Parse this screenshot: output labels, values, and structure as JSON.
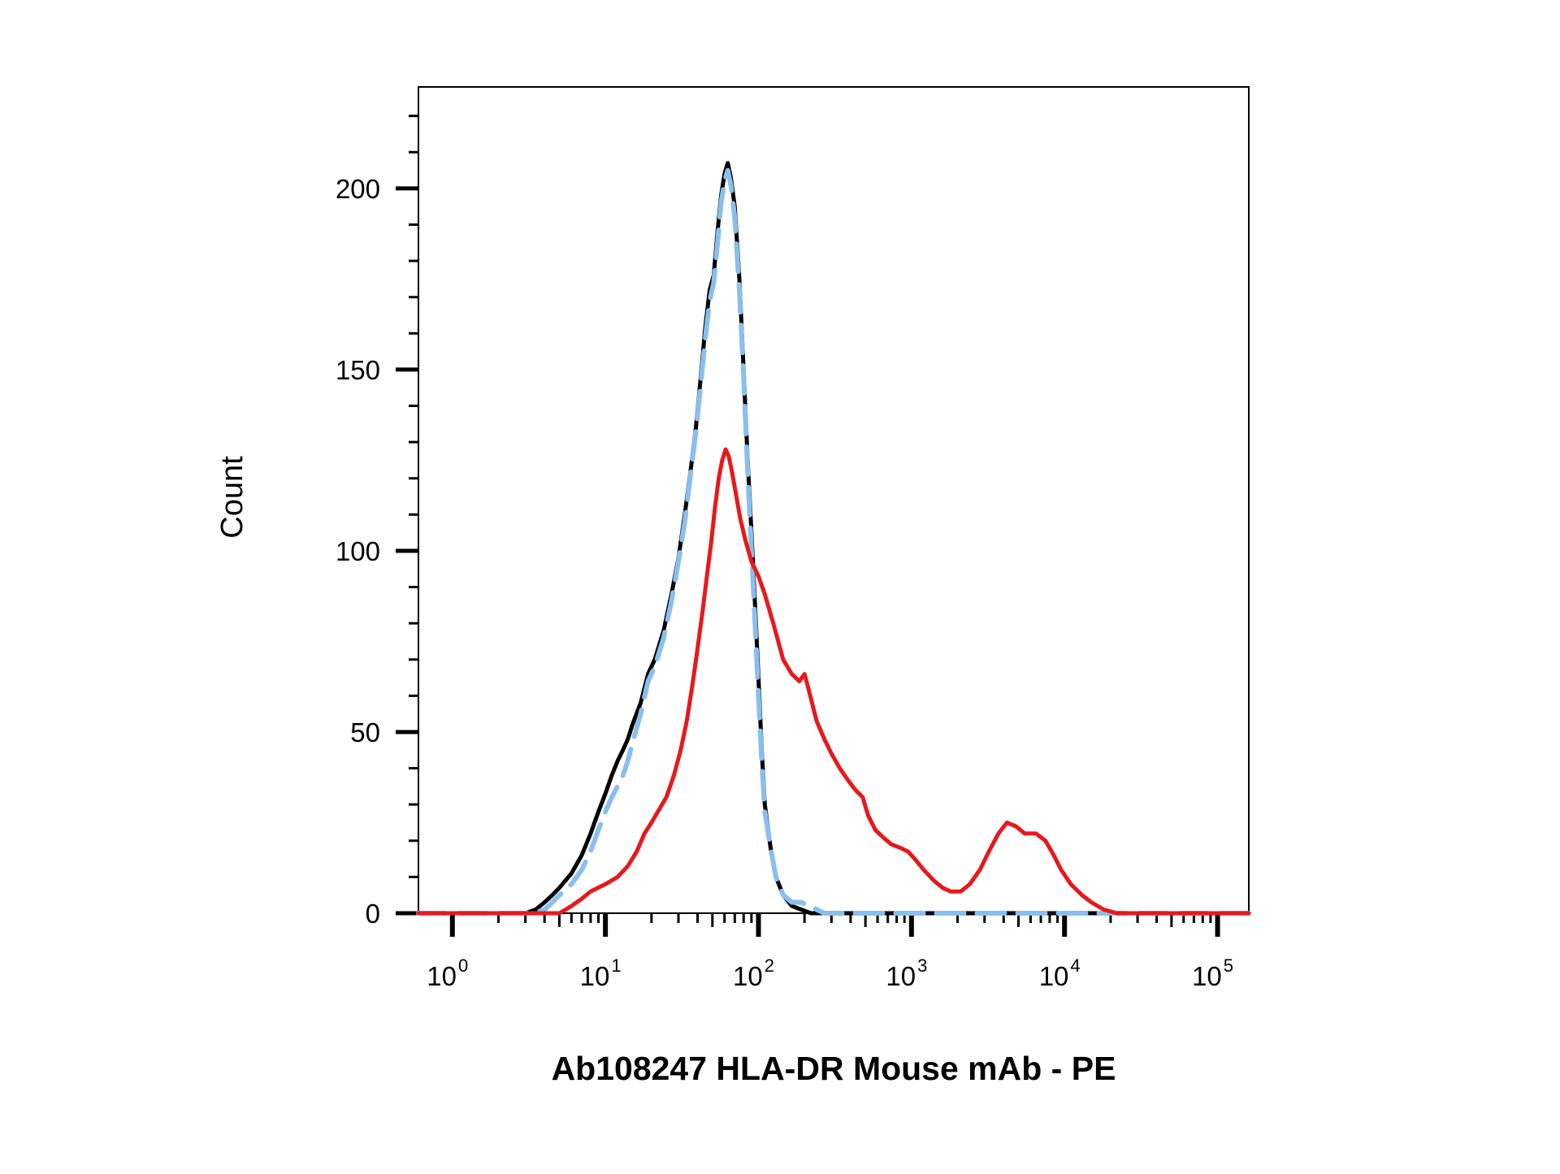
{
  "chart_data": {
    "type": "line",
    "title": "",
    "xlabel": "Ab108247 HLA-DR Mouse mAb - PE",
    "ylabel": "Count",
    "xscale": "log",
    "xlim": [
      0.6,
      160000
    ],
    "ylim": [
      0,
      228
    ],
    "xticks": [
      {
        "base": "10",
        "exp": "0",
        "value": 1
      },
      {
        "base": "10",
        "exp": "1",
        "value": 10
      },
      {
        "base": "10",
        "exp": "2",
        "value": 100
      },
      {
        "base": "10",
        "exp": "3",
        "value": 1000
      },
      {
        "base": "10",
        "exp": "4",
        "value": 10000
      },
      {
        "base": "10",
        "exp": "5",
        "value": 100000
      }
    ],
    "yticks": [
      0,
      50,
      100,
      150,
      200
    ],
    "grid": false,
    "legend": "none",
    "series": [
      {
        "color": "#000000",
        "style": "solid",
        "points": [
          [
            0.6,
            0
          ],
          [
            3,
            0
          ],
          [
            3.5,
            1
          ],
          [
            4,
            3
          ],
          [
            4.5,
            5
          ],
          [
            5,
            7
          ],
          [
            6,
            11
          ],
          [
            7,
            16
          ],
          [
            8,
            22
          ],
          [
            9,
            28
          ],
          [
            10,
            33
          ],
          [
            11,
            38
          ],
          [
            12,
            42
          ],
          [
            13,
            45
          ],
          [
            14,
            48
          ],
          [
            15,
            52
          ],
          [
            17,
            58
          ],
          [
            19,
            66
          ],
          [
            21,
            70
          ],
          [
            24,
            78
          ],
          [
            27,
            88
          ],
          [
            30,
            98
          ],
          [
            33,
            110
          ],
          [
            36,
            122
          ],
          [
            39,
            134
          ],
          [
            42,
            148
          ],
          [
            45,
            162
          ],
          [
            48,
            172
          ],
          [
            51,
            176
          ],
          [
            54,
            188
          ],
          [
            57,
            198
          ],
          [
            60,
            204
          ],
          [
            63,
            207
          ],
          [
            66,
            203
          ],
          [
            70,
            195
          ],
          [
            75,
            175
          ],
          [
            80,
            150
          ],
          [
            85,
            125
          ],
          [
            90,
            105
          ],
          [
            95,
            85
          ],
          [
            100,
            65
          ],
          [
            105,
            45
          ],
          [
            110,
            30
          ],
          [
            120,
            18
          ],
          [
            130,
            10
          ],
          [
            145,
            5
          ],
          [
            165,
            2
          ],
          [
            190,
            1
          ],
          [
            220,
            0
          ],
          [
            300,
            0
          ],
          [
            1000,
            0
          ],
          [
            10000,
            0
          ],
          [
            160000,
            0
          ]
        ]
      },
      {
        "color": "#89BFEF",
        "style": "dashed",
        "points": [
          [
            0.6,
            0
          ],
          [
            3.4,
            0
          ],
          [
            4,
            1
          ],
          [
            4.5,
            3
          ],
          [
            5,
            5
          ],
          [
            6,
            8
          ],
          [
            7,
            12
          ],
          [
            8,
            17
          ],
          [
            9,
            23
          ],
          [
            10,
            28
          ],
          [
            11,
            32
          ],
          [
            12,
            35
          ],
          [
            13,
            38
          ],
          [
            14,
            42
          ],
          [
            15,
            47
          ],
          [
            17,
            55
          ],
          [
            19,
            64
          ],
          [
            21,
            68
          ],
          [
            24,
            76
          ],
          [
            27,
            86
          ],
          [
            30,
            97
          ],
          [
            33,
            108
          ],
          [
            36,
            121
          ],
          [
            39,
            133
          ],
          [
            42,
            146
          ],
          [
            45,
            159
          ],
          [
            48,
            169
          ],
          [
            51,
            174
          ],
          [
            54,
            185
          ],
          [
            57,
            196
          ],
          [
            60,
            202
          ],
          [
            63,
            205
          ],
          [
            66,
            201
          ],
          [
            70,
            192
          ],
          [
            75,
            172
          ],
          [
            80,
            148
          ],
          [
            85,
            122
          ],
          [
            90,
            100
          ],
          [
            95,
            80
          ],
          [
            100,
            60
          ],
          [
            105,
            42
          ],
          [
            110,
            28
          ],
          [
            120,
            18
          ],
          [
            130,
            10
          ],
          [
            145,
            5
          ],
          [
            165,
            3
          ],
          [
            190,
            3
          ],
          [
            215,
            2
          ],
          [
            240,
            1
          ],
          [
            270,
            0
          ],
          [
            350,
            0
          ],
          [
            1000,
            0
          ],
          [
            10000,
            0
          ],
          [
            160000,
            0
          ]
        ]
      },
      {
        "color": "#E8181C",
        "style": "solid",
        "points": [
          [
            0.6,
            0
          ],
          [
            5,
            0
          ],
          [
            5.5,
            1
          ],
          [
            6,
            2
          ],
          [
            7,
            4
          ],
          [
            8,
            6
          ],
          [
            10,
            8
          ],
          [
            12,
            10
          ],
          [
            14,
            13
          ],
          [
            16,
            17
          ],
          [
            18,
            22
          ],
          [
            20,
            25
          ],
          [
            22,
            28
          ],
          [
            25,
            32
          ],
          [
            28,
            38
          ],
          [
            31,
            45
          ],
          [
            34,
            53
          ],
          [
            37,
            63
          ],
          [
            40,
            73
          ],
          [
            43,
            83
          ],
          [
            46,
            93
          ],
          [
            49,
            102
          ],
          [
            52,
            112
          ],
          [
            55,
            120
          ],
          [
            58,
            125
          ],
          [
            61,
            128
          ],
          [
            64,
            126
          ],
          [
            67,
            122
          ],
          [
            71,
            116
          ],
          [
            76,
            109
          ],
          [
            82,
            103
          ],
          [
            90,
            97
          ],
          [
            100,
            93
          ],
          [
            110,
            88
          ],
          [
            125,
            80
          ],
          [
            145,
            70
          ],
          [
            165,
            66
          ],
          [
            185,
            64
          ],
          [
            200,
            66
          ],
          [
            215,
            61
          ],
          [
            240,
            53
          ],
          [
            270,
            48
          ],
          [
            300,
            44
          ],
          [
            340,
            40
          ],
          [
            380,
            37
          ],
          [
            430,
            34
          ],
          [
            480,
            32
          ],
          [
            520,
            27
          ],
          [
            580,
            23
          ],
          [
            650,
            21
          ],
          [
            740,
            19
          ],
          [
            850,
            18
          ],
          [
            950,
            17
          ],
          [
            1050,
            15
          ],
          [
            1200,
            12
          ],
          [
            1400,
            9
          ],
          [
            1600,
            7
          ],
          [
            1800,
            6
          ],
          [
            2100,
            6
          ],
          [
            2400,
            8
          ],
          [
            2800,
            12
          ],
          [
            3200,
            17
          ],
          [
            3700,
            22
          ],
          [
            4200,
            25
          ],
          [
            4800,
            24
          ],
          [
            5500,
            22
          ],
          [
            6500,
            22
          ],
          [
            7500,
            20
          ],
          [
            8500,
            16
          ],
          [
            9500,
            12
          ],
          [
            11000,
            8
          ],
          [
            13000,
            5
          ],
          [
            15000,
            3
          ],
          [
            18000,
            1
          ],
          [
            22000,
            0
          ],
          [
            40000,
            0
          ],
          [
            160000,
            0
          ]
        ]
      }
    ]
  }
}
